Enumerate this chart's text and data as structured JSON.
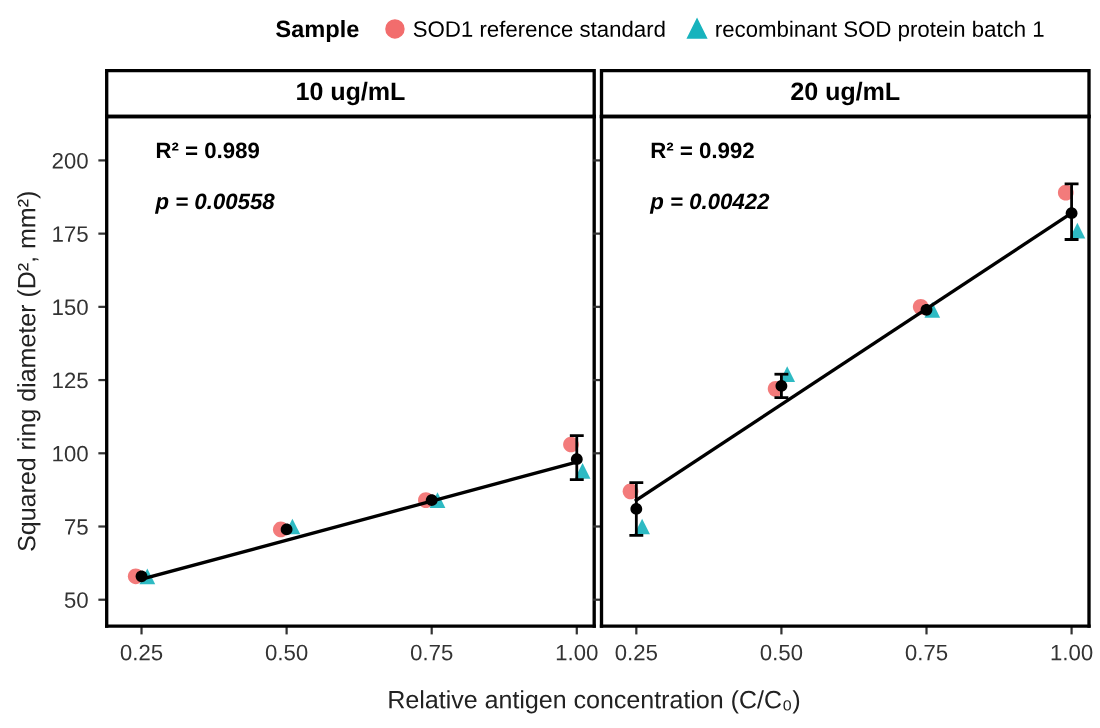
{
  "chart_data": [
    {
      "type": "scatter",
      "title": "10 ug/mL",
      "xlabel": "Relative antigen concentration (C/C₀)",
      "ylabel": "Squared ring diameter (D², mm²)",
      "legend_title": "Sample",
      "legend": "top",
      "grid": false,
      "xlim": [
        0.19,
        1.03
      ],
      "xticks": [
        {
          "value": 0.25,
          "label": "0.25"
        },
        {
          "value": 0.5,
          "label": "0.50"
        },
        {
          "value": 0.75,
          "label": "0.75"
        },
        {
          "value": 1.0,
          "label": "1.00"
        }
      ],
      "ylim": [
        41,
        215
      ],
      "yticks": [
        50,
        75,
        100,
        125,
        150,
        175,
        200
      ],
      "annotations": [
        "R² = 0.989",
        "p = 0.00558"
      ],
      "series": [
        {
          "name": "SOD1 reference standard",
          "color": "#f26d6d",
          "marker": "circle",
          "x": [
            0.24,
            0.49,
            0.74,
            0.99
          ],
          "values": [
            58,
            74,
            84,
            103
          ]
        },
        {
          "name": "recombinant SOD protein batch 1",
          "color": "#17b3bd",
          "marker": "triangle",
          "x": [
            0.26,
            0.51,
            0.76,
            1.01
          ],
          "values": [
            58,
            75,
            84,
            94
          ]
        },
        {
          "color": "#000000",
          "marker": "circle",
          "x": [
            0.25,
            0.5,
            0.75,
            1.0
          ],
          "values": [
            58,
            74,
            84,
            98
          ],
          "errors": [
            null,
            null,
            null,
            [
              91,
              106
            ]
          ]
        },
        {
          "type": "line",
          "color": "#000000",
          "marker": "none",
          "line_style": "solid",
          "x": [
            0.25,
            1.0
          ],
          "values": [
            57,
            97
          ]
        }
      ]
    },
    {
      "type": "scatter",
      "title": "20 ug/mL",
      "grid": false,
      "tick_labels": "x",
      "xlim": [
        0.19,
        1.03
      ],
      "xticks": [
        {
          "value": 0.25,
          "label": "0.25"
        },
        {
          "value": 0.5,
          "label": "0.50"
        },
        {
          "value": 0.75,
          "label": "0.75"
        },
        {
          "value": 1.0,
          "label": "1.00"
        }
      ],
      "ylim": [
        41,
        215
      ],
      "yticks": [
        50,
        75,
        100,
        125,
        150,
        175,
        200
      ],
      "annotations": [
        "R² = 0.992",
        "p = 0.00422"
      ],
      "series": [
        {
          "color": "#f26d6d",
          "marker": "circle",
          "x": [
            0.24,
            0.49,
            0.74,
            0.99
          ],
          "values": [
            87,
            122,
            150,
            189
          ]
        },
        {
          "color": "#17b3bd",
          "marker": "triangle",
          "x": [
            0.26,
            0.51,
            0.76,
            1.01
          ],
          "values": [
            75,
            127,
            149,
            176
          ]
        },
        {
          "color": "#000000",
          "marker": "circle",
          "x": [
            0.25,
            0.5,
            0.75,
            1.0
          ],
          "values": [
            81,
            123,
            149,
            182
          ],
          "errors": [
            [
              72,
              90
            ],
            [
              119,
              127
            ],
            null,
            [
              173,
              192
            ]
          ]
        },
        {
          "type": "line",
          "color": "#000000",
          "marker": "none",
          "line_style": "solid",
          "x": [
            0.25,
            1.0
          ],
          "values": [
            84,
            182
          ]
        }
      ]
    }
  ]
}
